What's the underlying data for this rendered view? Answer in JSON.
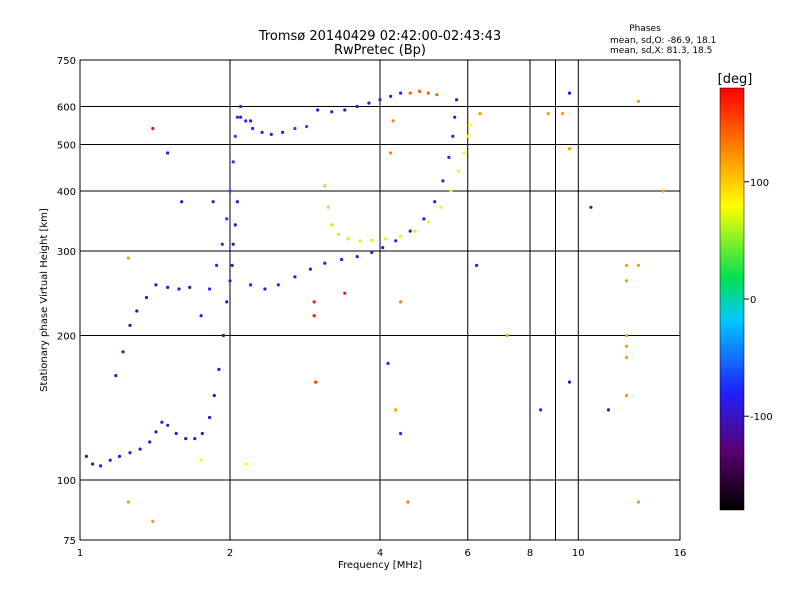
{
  "header": {
    "title": "Tromsø 20140429 02:42:00-02:43:43",
    "subtitle": "RwPretec (Bp)",
    "stats_heading": "Phases",
    "stats_o": "mean, sd,O: -86.9, 18.1",
    "stats_x": "mean, sd,X: 81.3, 18.5"
  },
  "colorbar": {
    "label": "[deg]",
    "ticks": [
      "100",
      "0",
      "-100"
    ],
    "tick_values": [
      100,
      0,
      -100
    ],
    "range": [
      -180,
      180
    ],
    "colors": [
      "#000000",
      "#5a0070",
      "#2020ff",
      "#00c8ff",
      "#00e050",
      "#ffff00",
      "#ff8000",
      "#ff0000"
    ]
  },
  "chart_data": {
    "type": "scatter",
    "title": "Tromsø 20140429 02:42:00-02:43:43",
    "subtitle": "RwPretec (Bp)",
    "xlabel": "Frequency [MHz]",
    "ylabel": "Stationary phase Virtual Height [km]",
    "xscale": "log",
    "yscale": "log",
    "xlim": [
      1,
      16
    ],
    "ylim": [
      75,
      750
    ],
    "x_ticks": [
      1,
      2,
      4,
      6,
      8,
      10,
      16
    ],
    "x_tick_labels": [
      "1",
      "2",
      "4",
      "6",
      "8",
      "10",
      "16"
    ],
    "y_ticks": [
      75,
      100,
      200,
      300,
      400,
      500,
      600,
      750
    ],
    "y_tick_labels": [
      "75",
      "100",
      "200",
      "300",
      "400",
      "500",
      "600",
      "750"
    ],
    "grid_x": [
      2,
      4,
      6,
      8,
      9,
      10
    ],
    "grid_y": [
      100,
      200,
      300,
      400,
      500,
      600
    ],
    "grid": true,
    "color_variable": "phase [deg]",
    "series": [
      {
        "points": [
          [
            1.03,
            112,
            -95
          ],
          [
            1.06,
            108,
            -100
          ],
          [
            1.1,
            107,
            -98
          ],
          [
            1.15,
            110,
            -96
          ],
          [
            1.2,
            112,
            -94
          ],
          [
            1.26,
            114,
            -93
          ],
          [
            1.32,
            116,
            -92
          ],
          [
            1.38,
            120,
            -95
          ],
          [
            1.42,
            126,
            -97
          ],
          [
            1.46,
            132,
            -98
          ],
          [
            1.5,
            130,
            -96
          ],
          [
            1.56,
            125,
            -94
          ],
          [
            1.63,
            122,
            -93
          ],
          [
            1.7,
            122,
            -92
          ],
          [
            1.76,
            125,
            -95
          ],
          [
            1.82,
            135,
            -96
          ],
          [
            1.86,
            150,
            -98
          ],
          [
            1.9,
            170,
            -99
          ],
          [
            1.94,
            200,
            -98
          ],
          [
            1.97,
            235,
            -96
          ],
          [
            2.0,
            260,
            -94
          ],
          [
            2.02,
            280,
            -95
          ],
          [
            2.03,
            310,
            -97
          ],
          [
            2.05,
            340,
            -98
          ],
          [
            2.07,
            380,
            -96
          ]
        ]
      },
      {
        "points": [
          [
            1.18,
            165,
            -100
          ],
          [
            1.22,
            185,
            -102
          ],
          [
            1.26,
            210,
            -101
          ],
          [
            1.3,
            225,
            -100
          ],
          [
            1.36,
            240,
            -99
          ],
          [
            1.42,
            255,
            -98
          ],
          [
            1.5,
            252,
            -97
          ],
          [
            1.58,
            250,
            -96
          ],
          [
            1.66,
            252,
            -95
          ]
        ]
      },
      {
        "points": [
          [
            1.75,
            220,
            -80
          ],
          [
            1.82,
            250,
            -78
          ],
          [
            1.88,
            280,
            -75
          ],
          [
            1.93,
            310,
            -72
          ],
          [
            1.97,
            350,
            -70
          ],
          [
            2.0,
            400,
            -68
          ],
          [
            2.03,
            460,
            -70
          ],
          [
            2.05,
            520,
            -72
          ],
          [
            2.07,
            570,
            -74
          ],
          [
            2.1,
            600,
            -76
          ],
          [
            2.15,
            560,
            -78
          ],
          [
            2.22,
            540,
            -82
          ],
          [
            2.32,
            530,
            -85
          ],
          [
            2.42,
            525,
            -84
          ],
          [
            2.55,
            530,
            -80
          ],
          [
            2.7,
            540,
            -70
          ],
          [
            2.85,
            545,
            -66
          ]
        ]
      },
      {
        "points": [
          [
            2.2,
            255,
            -80
          ],
          [
            2.35,
            250,
            -82
          ],
          [
            2.5,
            255,
            -84
          ],
          [
            2.7,
            265,
            -86
          ],
          [
            2.9,
            275,
            -88
          ],
          [
            3.1,
            283,
            -90
          ],
          [
            3.35,
            288,
            -92
          ],
          [
            3.6,
            292,
            -93
          ],
          [
            3.85,
            298,
            -92
          ],
          [
            4.05,
            305,
            -90
          ],
          [
            4.3,
            315,
            -88
          ],
          [
            4.6,
            330,
            -86
          ],
          [
            4.9,
            350,
            -84
          ],
          [
            5.15,
            380,
            -83
          ],
          [
            5.35,
            420,
            -82
          ],
          [
            5.5,
            470,
            -83
          ],
          [
            5.6,
            520,
            -85
          ],
          [
            5.65,
            570,
            -87
          ],
          [
            5.7,
            620,
            -88
          ]
        ]
      },
      {
        "points": [
          [
            3.0,
            590,
            -96
          ],
          [
            3.2,
            585,
            -95
          ],
          [
            3.4,
            590,
            -94
          ],
          [
            3.6,
            600,
            -92
          ],
          [
            3.8,
            610,
            -90
          ],
          [
            4.0,
            620,
            -88
          ],
          [
            4.2,
            630,
            -86
          ],
          [
            4.4,
            640,
            -84
          ]
        ]
      },
      {
        "points": [
          [
            3.1,
            410,
            55
          ],
          [
            3.15,
            370,
            60
          ],
          [
            3.2,
            340,
            62
          ],
          [
            3.3,
            325,
            64
          ],
          [
            3.45,
            318,
            66
          ],
          [
            3.65,
            315,
            68
          ],
          [
            3.85,
            316,
            70
          ],
          [
            4.1,
            318,
            70
          ],
          [
            4.4,
            322,
            72
          ],
          [
            4.7,
            330,
            72
          ],
          [
            5.0,
            345,
            74
          ],
          [
            5.3,
            370,
            75
          ],
          [
            5.55,
            400,
            76
          ],
          [
            5.75,
            440,
            77
          ],
          [
            5.9,
            480,
            78
          ],
          [
            6.0,
            520,
            79
          ],
          [
            6.05,
            550,
            80
          ]
        ]
      },
      {
        "points": [
          [
            4.6,
            640,
            140
          ],
          [
            4.8,
            645,
            142
          ],
          [
            5.0,
            640,
            144
          ],
          [
            5.2,
            635,
            140
          ]
        ]
      },
      {
        "points": [
          [
            1.4,
            540,
            175
          ],
          [
            1.75,
            110,
            80
          ],
          [
            2.15,
            108,
            80
          ],
          [
            2.95,
            235,
            170
          ],
          [
            2.95,
            220,
            170
          ],
          [
            2.97,
            160,
            155
          ],
          [
            3.4,
            245,
            170
          ],
          [
            4.15,
            175,
            -75
          ],
          [
            4.3,
            140,
            120
          ],
          [
            4.4,
            125,
            -75
          ],
          [
            4.55,
            90,
            130
          ],
          [
            4.4,
            235,
            130
          ],
          [
            4.2,
            480,
            130
          ],
          [
            4.25,
            560,
            130
          ],
          [
            6.25,
            280,
            -80
          ],
          [
            6.35,
            580,
            120
          ],
          [
            7.2,
            200,
            120
          ],
          [
            8.4,
            140,
            -80
          ],
          [
            8.7,
            580,
            120
          ],
          [
            9.3,
            580,
            120
          ],
          [
            9.6,
            640,
            -100
          ],
          [
            9.6,
            490,
            120
          ],
          [
            9.6,
            160,
            -100
          ],
          [
            10.6,
            370,
            -100
          ],
          [
            11.5,
            140,
            -100
          ],
          [
            12.5,
            280,
            120
          ],
          [
            12.5,
            260,
            120
          ],
          [
            12.5,
            200,
            120
          ],
          [
            12.5,
            190,
            120
          ],
          [
            12.5,
            180,
            120
          ],
          [
            12.5,
            150,
            120
          ],
          [
            13.2,
            280,
            120
          ],
          [
            13.2,
            615,
            120
          ],
          [
            13.2,
            90,
            120
          ],
          [
            14.8,
            400,
            120
          ],
          [
            1.25,
            90,
            120
          ],
          [
            1.4,
            82,
            120
          ],
          [
            1.25,
            290,
            120
          ],
          [
            1.5,
            480,
            -90
          ],
          [
            1.6,
            380,
            -90
          ],
          [
            1.85,
            380,
            -90
          ],
          [
            2.1,
            570,
            -88
          ],
          [
            2.2,
            560,
            -88
          ]
        ]
      }
    ]
  }
}
